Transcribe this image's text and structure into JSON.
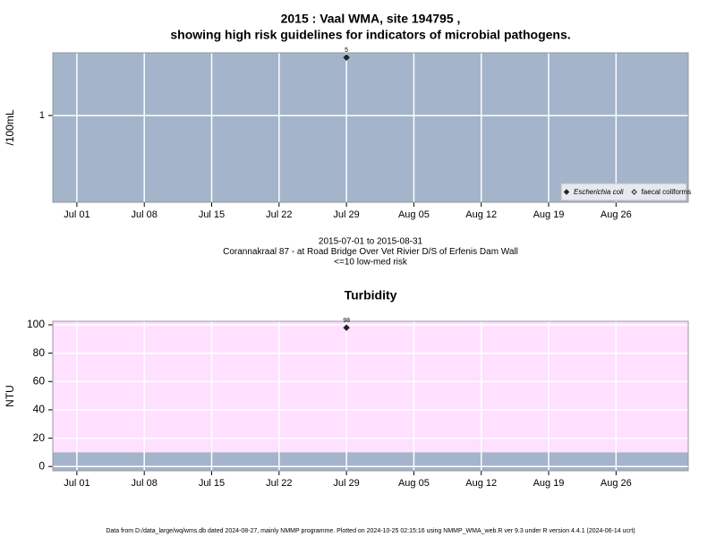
{
  "chart_data": [
    {
      "type": "scatter",
      "title": "2015 : Vaal WMA, site 194795 ,",
      "subtitle": "showing high risk guidelines for indicators of microbial pathogens.",
      "ylabel": "/100mL",
      "log_y": true,
      "background": "#a3b4cb",
      "grid": true,
      "legend": "bottom-right",
      "x": [
        "2015-07-29"
      ],
      "series": [
        {
          "name": "Escherichia coli",
          "marker": "filled",
          "italic": true,
          "color": "#222222",
          "values": [
            5
          ]
        },
        {
          "name": "faecal coliforms",
          "marker": "open",
          "italic": false,
          "color": "#222222",
          "values": [
            null
          ]
        }
      ],
      "xlim": [
        "2015-06-28T12:00",
        "2015-09-02T12:00"
      ],
      "xticks": [
        {
          "value": "2015-07-01",
          "label": "Jul 01"
        },
        {
          "value": "2015-07-08",
          "label": "Jul 08"
        },
        {
          "value": "2015-07-15",
          "label": "Jul 15"
        },
        {
          "value": "2015-07-22",
          "label": "Jul 22"
        },
        {
          "value": "2015-07-29",
          "label": "Jul 29"
        },
        {
          "value": "2015-08-05",
          "label": "Aug 05"
        },
        {
          "value": "2015-08-12",
          "label": "Aug 12"
        },
        {
          "value": "2015-08-19",
          "label": "Aug 19"
        },
        {
          "value": "2015-08-26",
          "label": "Aug 26"
        }
      ],
      "ylim": [
        0.09,
        5.7
      ],
      "yticks": [
        1
      ],
      "notes": [
        "2015-07-01 to 2015-08-31",
        "Corannakraal 87 - at Road Bridge Over Vet Rivier D/S of Erfenis Dam Wall",
        "<=10 low-med risk"
      ]
    },
    {
      "type": "scatter",
      "title": "Turbidity",
      "ylabel": "NTU",
      "log_y": false,
      "grid": true,
      "threshold": 10,
      "below_color": "#a3b4cb",
      "above_color": "#ffe0ff",
      "x": [
        "2015-07-29"
      ],
      "series": [
        {
          "marker": "filled",
          "color": "#222222",
          "values": [
            98
          ]
        }
      ],
      "xlim": [
        "2015-06-28T12:00",
        "2015-09-02T12:00"
      ],
      "xticks": [
        {
          "value": "2015-07-01",
          "label": "Jul 01"
        },
        {
          "value": "2015-07-08",
          "label": "Jul 08"
        },
        {
          "value": "2015-07-15",
          "label": "Jul 15"
        },
        {
          "value": "2015-07-22",
          "label": "Jul 22"
        },
        {
          "value": "2015-07-29",
          "label": "Jul 29"
        },
        {
          "value": "2015-08-05",
          "label": "Aug 05"
        },
        {
          "value": "2015-08-12",
          "label": "Aug 12"
        },
        {
          "value": "2015-08-19",
          "label": "Aug 19"
        },
        {
          "value": "2015-08-26",
          "label": "Aug 26"
        }
      ],
      "ylim": [
        -3,
        102.5
      ],
      "yticks": [
        0,
        20,
        40,
        60,
        80,
        100
      ]
    }
  ],
  "footer": "Data from D:/data_large/wq/wms.db dated 2024-08-27, mainly NMMP programme. Plotted on 2024-10-25 02:15:16 using NMMP_WMA_web.R ver 9.3 under R version 4.4.1 (2024-06-14 ucrt)"
}
